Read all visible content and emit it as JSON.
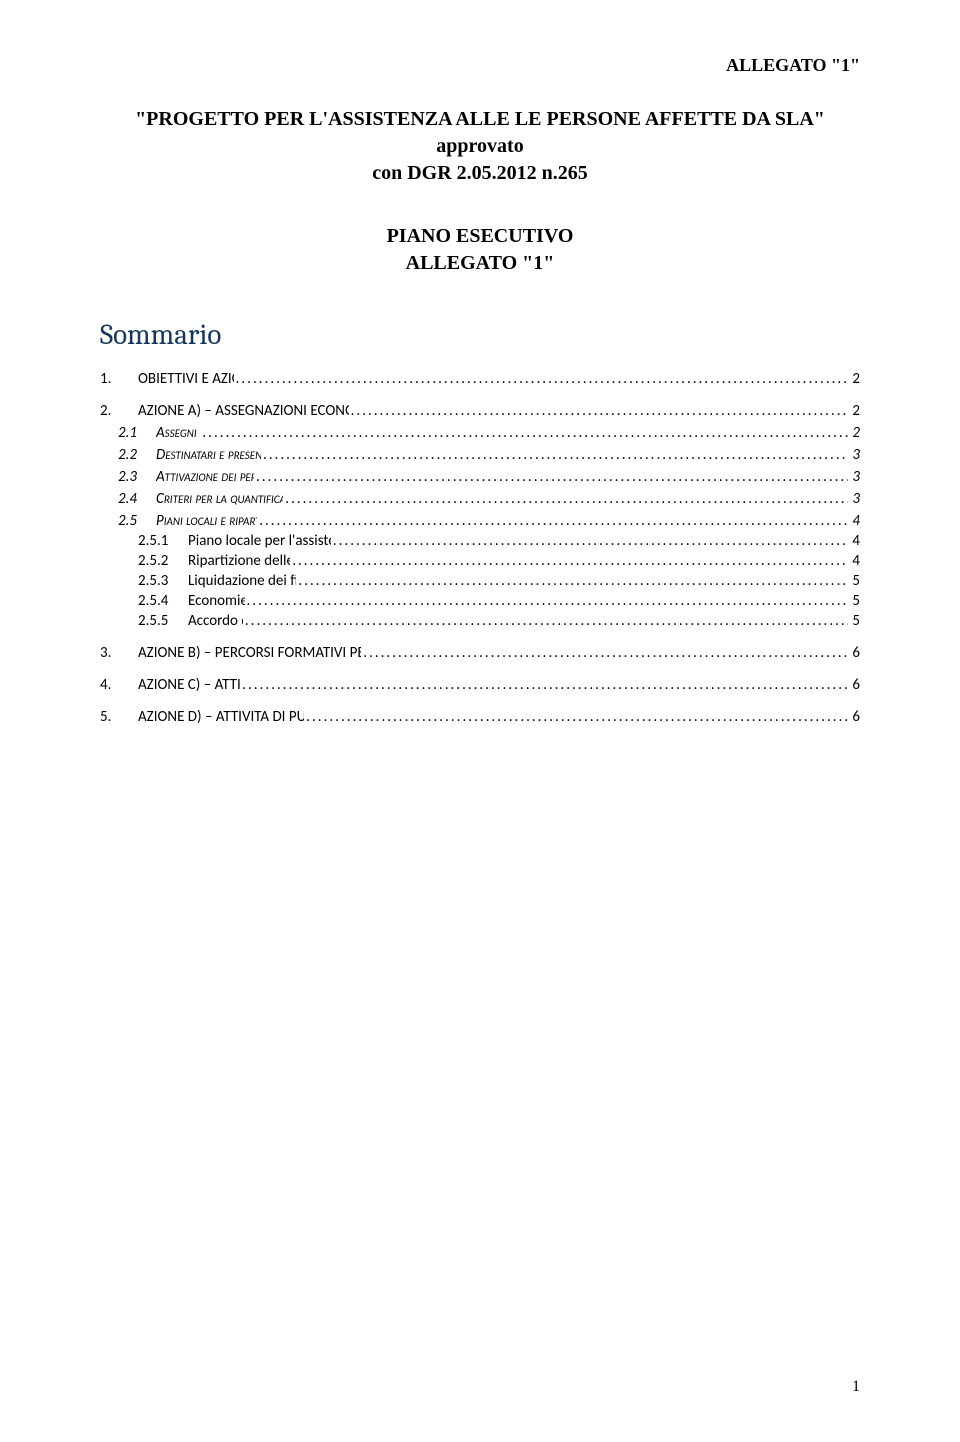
{
  "header_annex": "ALLEGATO \"1\"",
  "project_title_line1": "\"PROGETTO PER L'ASSISTENZA ALLE LE PERSONE AFFETTE DA SLA\" approvato",
  "project_title_line2": "con DGR 2.05.2012 n.265",
  "plan_label": "PIANO ESECUTIVO",
  "allegato_label": "ALLEGATO \"1\"",
  "sommario_heading": "Sommario",
  "toc": {
    "s1": {
      "num": "1.",
      "label": "OBIETTIVI E AZIONI DEL PIANO",
      "page": "2"
    },
    "s2": {
      "num": "2.",
      "label": "AZIONE A) – ASSEGNAZIONI ECONOMICHE PER IL SOSTEGNO DELLA DOMICILIARITÀ",
      "page": "2"
    },
    "s2_1": {
      "num": "2.1",
      "label": "Assegni di cura",
      "page": "2"
    },
    "s2_2": {
      "num": "2.2",
      "label": "Destinatari e presentazione delle istanze",
      "page": "3"
    },
    "s2_3": {
      "num": "2.3",
      "label": "Attivazione dei percorsi assistenziali.",
      "page": "3"
    },
    "s2_4": {
      "num": "2.4",
      "label": "Criteri per la quantificazione degli assegni di cura",
      "page": "3"
    },
    "s2_5": {
      "num": "2.5",
      "label": "Piani locali e ripartizione delle risorse",
      "page": "4"
    },
    "s2_5_1": {
      "num": "2.5.1",
      "label": "Piano locale per l'assistenza alle persone malate di SLA",
      "page": "4"
    },
    "s2_5_2": {
      "num": "2.5.2",
      "label": "Ripartizione delle risorse disponibili.",
      "page": "4"
    },
    "s2_5_3": {
      "num": "2.5.3",
      "label": "Liquidazione dei finanziamenti agli EAS",
      "page": "5"
    },
    "s2_5_4": {
      "num": "2.5.4",
      "label": "Economie di spesa",
      "page": "5"
    },
    "s2_5_5": {
      "num": "2.5.5",
      "label": "Accordo di fiducia",
      "page": "5"
    },
    "s3": {
      "num": "3.",
      "label": "AZIONE B) – PERCORSI FORMATIVI PER I FAMILIARI CAREGIVER E GLI ASSISTENTI FAMILIARI",
      "page": "6"
    },
    "s4": {
      "num": "4.",
      "label": "AZIONE C) – ATTIVITÀ DI RICERCA",
      "page": "6"
    },
    "s5": {
      "num": "5.",
      "label": "AZIONE D) – ATTIVITA DI PUBBLICIZZAZIONE E PROMOZIONE",
      "page": "6"
    }
  },
  "page_number": "1",
  "colors": {
    "heading": "#17365d",
    "text": "#000000",
    "background": "#ffffff"
  },
  "typography": {
    "body_font": "Times New Roman",
    "toc_font": "Calibri",
    "heading_font": "Cambria",
    "heading_size_pt": 22,
    "title_size_pt": 15,
    "toc_size_pt": 11
  }
}
